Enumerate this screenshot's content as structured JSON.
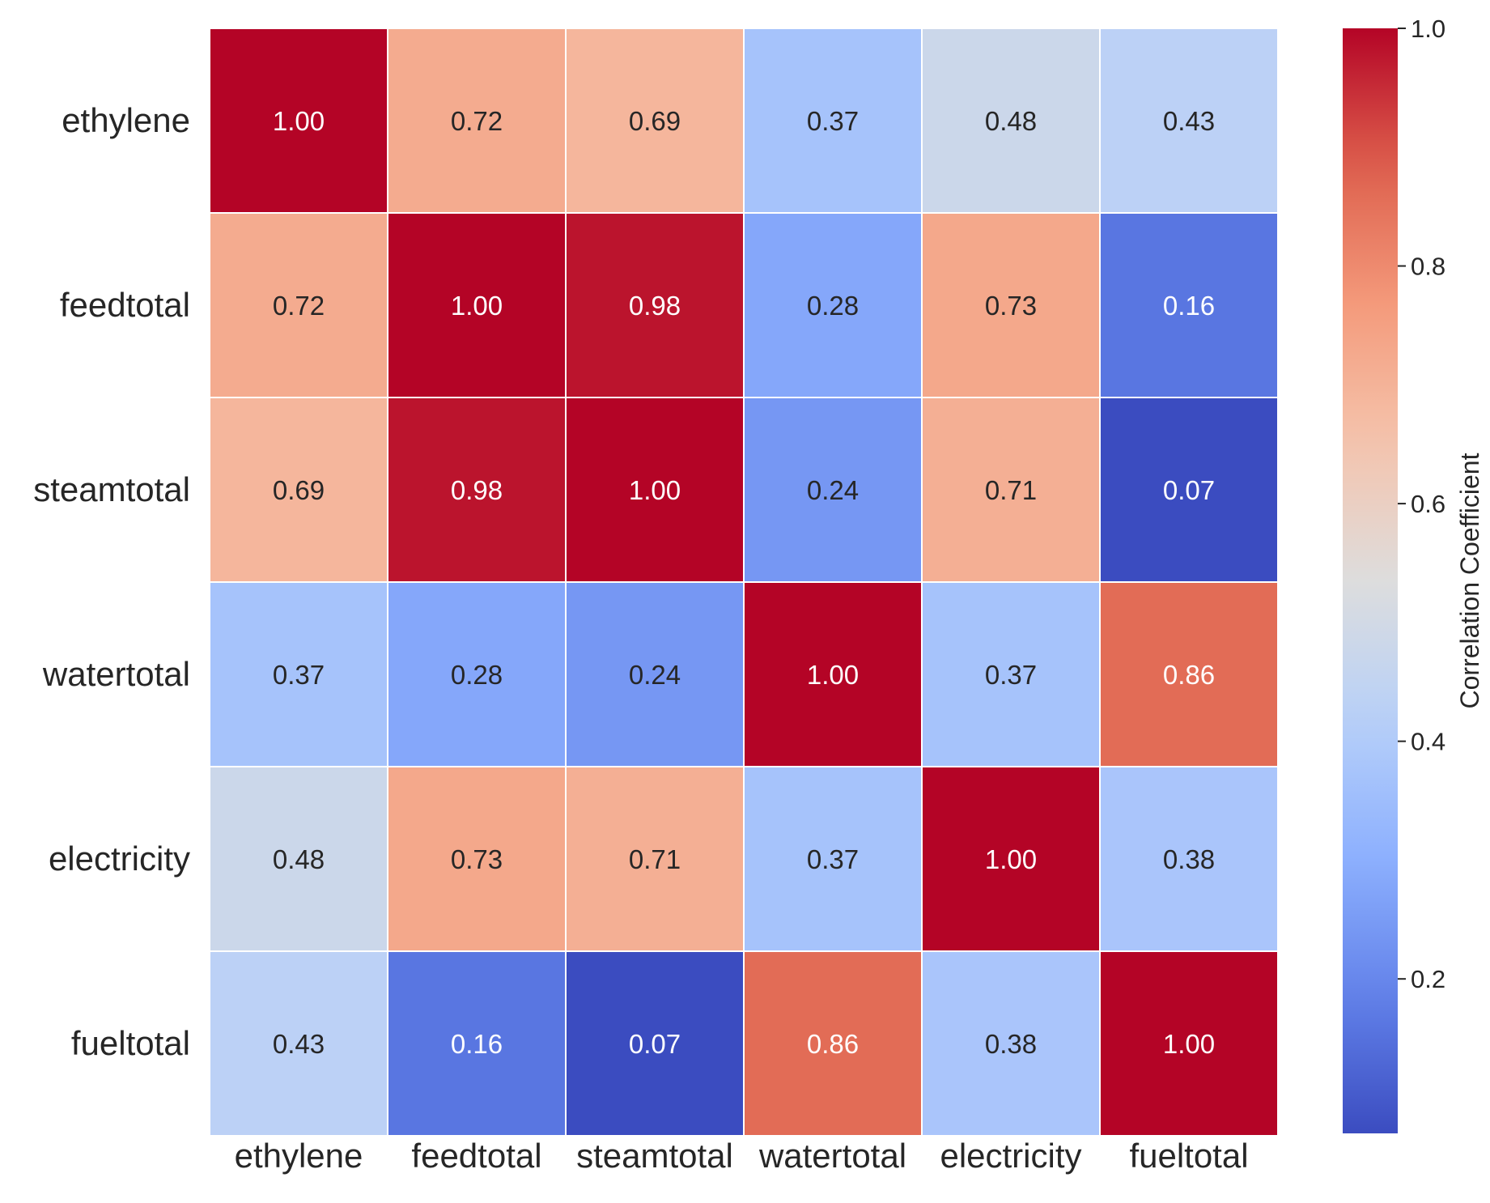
{
  "chart_data": {
    "type": "heatmap",
    "title": "",
    "xlabel": "",
    "ylabel": "",
    "row_labels": [
      "ethylene",
      "feedtotal",
      "steamtotal",
      "watertotal",
      "electricity",
      "fueltotal"
    ],
    "col_labels": [
      "ethylene",
      "feedtotal",
      "steamtotal",
      "watertotal",
      "electricity",
      "fueltotal"
    ],
    "values": [
      [
        1.0,
        0.72,
        0.69,
        0.37,
        0.48,
        0.43
      ],
      [
        0.72,
        1.0,
        0.98,
        0.28,
        0.73,
        0.16
      ],
      [
        0.69,
        0.98,
        1.0,
        0.24,
        0.71,
        0.07
      ],
      [
        0.37,
        0.28,
        0.24,
        1.0,
        0.37,
        0.86
      ],
      [
        0.48,
        0.73,
        0.71,
        0.37,
        1.0,
        0.38
      ],
      [
        0.43,
        0.16,
        0.07,
        0.86,
        0.38,
        1.0
      ]
    ],
    "cell_text_format": "2 decimals",
    "colormap": "coolwarm",
    "vmin": 0.07,
    "vmax": 1.0,
    "colorbar": {
      "label": "Correlation Coefficient",
      "ticks": [
        0.2,
        0.4,
        0.6,
        0.8,
        1.0
      ],
      "tick_labels": [
        "0.2",
        "0.4",
        "0.6",
        "0.8",
        "1.0"
      ]
    },
    "grid": false,
    "legend": "colorbar-right"
  }
}
